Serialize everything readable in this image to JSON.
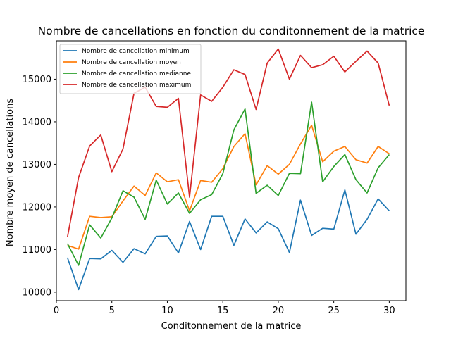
{
  "chart_data": {
    "type": "line",
    "title": "Nombre de cancellations en fonction du conditonnement de la matrice",
    "xlabel": "Conditonnement de la matrice",
    "ylabel": "Nombre moyen de cancellations",
    "xlim": [
      0,
      31.5
    ],
    "ylim": [
      9800,
      15900
    ],
    "xticks": [
      0,
      5,
      10,
      15,
      20,
      25,
      30
    ],
    "yticks": [
      10000,
      11000,
      12000,
      13000,
      14000,
      15000
    ],
    "legend_position": "top-left",
    "grid": false,
    "x": [
      1,
      2,
      3,
      4,
      5,
      6,
      7,
      8,
      9,
      10,
      11,
      12,
      13,
      14,
      15,
      16,
      17,
      18,
      19,
      20,
      21,
      22,
      23,
      24,
      25,
      26,
      27,
      28,
      29,
      30
    ],
    "series": [
      {
        "name": "Nombre de cancellation minimum",
        "color": "#1f77b4",
        "values": [
          10810,
          10060,
          10790,
          10780,
          10980,
          10700,
          11020,
          10900,
          11310,
          11320,
          10920,
          11660,
          11000,
          11780,
          11780,
          11100,
          11720,
          11390,
          11650,
          11490,
          10930,
          12160,
          11330,
          11500,
          11480,
          12400,
          11360,
          11710,
          12190,
          11910
        ]
      },
      {
        "name": "Nombre de cancellation moyen",
        "color": "#ff7f0e",
        "values": [
          11100,
          11010,
          11780,
          11750,
          11770,
          12140,
          12490,
          12270,
          12800,
          12590,
          12640,
          11910,
          12620,
          12580,
          12900,
          13420,
          13720,
          12520,
          12970,
          12770,
          13000,
          13480,
          13920,
          13060,
          13310,
          13420,
          13110,
          13030,
          13420,
          13250
        ]
      },
      {
        "name": "Nombre de cancellation medianne",
        "color": "#2ca02c",
        "values": [
          11140,
          10630,
          11580,
          11270,
          11740,
          12380,
          12230,
          11710,
          12630,
          12070,
          12330,
          11850,
          12170,
          12290,
          12780,
          13810,
          14300,
          12320,
          12510,
          12270,
          12790,
          12780,
          14460,
          12590,
          12950,
          13230,
          12640,
          12330,
          12920,
          13230
        ]
      },
      {
        "name": "Nombre de cancellation maximum",
        "color": "#d62728",
        "values": [
          11290,
          12690,
          13430,
          13690,
          12830,
          13360,
          14670,
          14810,
          14360,
          14340,
          14550,
          12230,
          14630,
          14480,
          14810,
          15220,
          15110,
          14290,
          15380,
          15710,
          15000,
          15560,
          15270,
          15340,
          15540,
          15170,
          15420,
          15660,
          15380,
          14380
        ]
      }
    ]
  }
}
